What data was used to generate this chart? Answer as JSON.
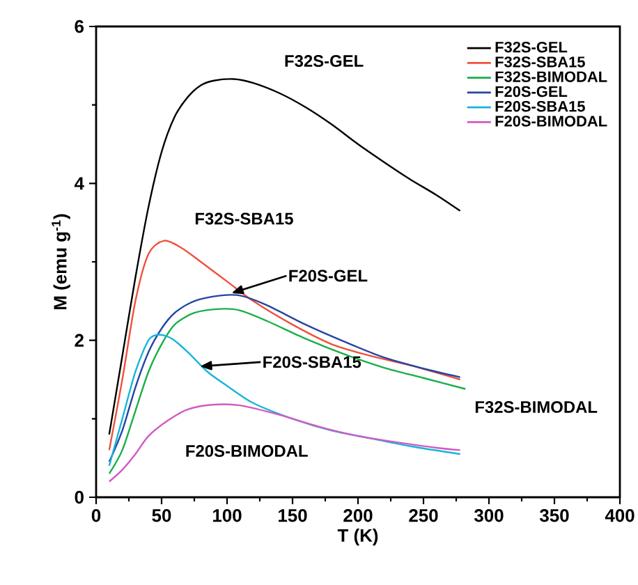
{
  "chart_data": {
    "type": "line",
    "xlabel": "T (K)",
    "ylabel": "M (emu g$^{-1}$)",
    "xlim": [
      0,
      400
    ],
    "xticks": [
      0,
      50,
      100,
      150,
      200,
      250,
      300,
      350,
      400
    ],
    "ylim": [
      0,
      6
    ],
    "yticks": [
      0,
      2,
      4,
      6
    ],
    "legend": "top right",
    "grid": false,
    "marker": "none",
    "line_style": "solid",
    "series": [
      {
        "name": "F32S-GEL",
        "color": "#000000",
        "x": [
          10,
          20,
          30,
          40,
          50,
          60,
          70,
          80,
          90,
          105,
          120,
          140,
          160,
          180,
          200,
          220,
          240,
          260,
          278
        ],
        "values": [
          0.8,
          1.8,
          2.8,
          3.7,
          4.4,
          4.85,
          5.1,
          5.25,
          5.31,
          5.33,
          5.28,
          5.15,
          4.97,
          4.75,
          4.5,
          4.27,
          4.05,
          3.85,
          3.65
        ]
      },
      {
        "name": "F32S-SBA15",
        "color": "#f0503c",
        "x": [
          10,
          20,
          30,
          40,
          52,
          65,
          80,
          100,
          120,
          150,
          180,
          210,
          240,
          278
        ],
        "values": [
          0.6,
          1.5,
          2.5,
          3.1,
          3.27,
          3.18,
          3.0,
          2.75,
          2.5,
          2.2,
          1.95,
          1.8,
          1.68,
          1.5
        ]
      },
      {
        "name": "F32S-BIMODAL",
        "color": "#1aae48",
        "x": [
          10,
          20,
          30,
          40,
          50,
          60,
          75,
          95,
          110,
          130,
          160,
          190,
          220,
          250,
          282
        ],
        "values": [
          0.3,
          0.6,
          1.1,
          1.6,
          1.95,
          2.2,
          2.35,
          2.4,
          2.38,
          2.25,
          2.02,
          1.82,
          1.65,
          1.52,
          1.38
        ]
      },
      {
        "name": "F20S-GEL",
        "color": "#2446a0",
        "x": [
          10,
          20,
          30,
          40,
          50,
          60,
          75,
          95,
          110,
          130,
          160,
          190,
          220,
          250,
          278
        ],
        "values": [
          0.45,
          0.85,
          1.4,
          1.85,
          2.15,
          2.35,
          2.5,
          2.57,
          2.57,
          2.45,
          2.2,
          1.98,
          1.78,
          1.64,
          1.53
        ]
      },
      {
        "name": "F20S-SBA15",
        "color": "#18b4dc",
        "x": [
          10,
          20,
          30,
          40,
          48,
          58,
          70,
          85,
          100,
          120,
          150,
          180,
          210,
          240,
          278
        ],
        "values": [
          0.4,
          1.0,
          1.6,
          2.0,
          2.07,
          2.02,
          1.85,
          1.6,
          1.42,
          1.2,
          1.0,
          0.85,
          0.75,
          0.65,
          0.55
        ]
      },
      {
        "name": "F20S-BIMODAL",
        "color": "#d25ac3",
        "x": [
          10,
          20,
          30,
          40,
          55,
          70,
          90,
          110,
          140,
          170,
          200,
          230,
          260,
          278
        ],
        "values": [
          0.2,
          0.35,
          0.55,
          0.78,
          0.98,
          1.12,
          1.18,
          1.17,
          1.05,
          0.9,
          0.78,
          0.7,
          0.63,
          0.6
        ]
      }
    ],
    "annotations": [
      "F32S-GEL",
      "F32S-SBA15",
      {
        "text": "F20S-GEL",
        "x": 105,
        "y": 2.61
      },
      {
        "text": "F20S-SBA15",
        "x": 81,
        "y": 1.67
      },
      "F32S-BIMODAL",
      "F20S-BIMODAL"
    ]
  }
}
